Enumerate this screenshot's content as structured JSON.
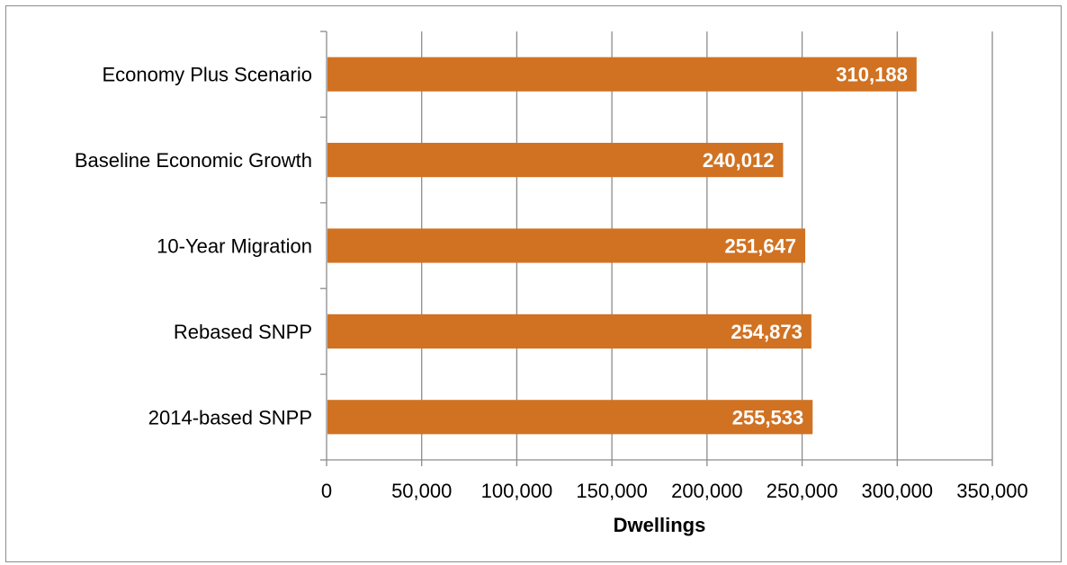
{
  "chart_data": {
    "type": "bar",
    "orientation": "horizontal",
    "categories": [
      "Economy Plus Scenario",
      "Baseline Economic Growth",
      "10-Year Migration",
      "Rebased SNPP",
      "2014-based SNPP"
    ],
    "values": [
      310188,
      240012,
      251647,
      254873,
      255533
    ],
    "data_labels": [
      "310,188",
      "240,012",
      "251,647",
      "254,873",
      "255,533"
    ],
    "title": "",
    "xlabel": "Dwellings",
    "ylabel": "",
    "xlim": [
      0,
      350000
    ],
    "x_ticks": [
      0,
      50000,
      100000,
      150000,
      200000,
      250000,
      300000,
      350000
    ],
    "x_tick_labels": [
      "0",
      "50,000",
      "100,000",
      "150,000",
      "200,000",
      "250,000",
      "300,000",
      "350,000"
    ],
    "grid": "vertical",
    "legend": "none",
    "bar_color": "#d07222",
    "grid_color": "#8c8c8c",
    "label_color": "#ffffff"
  }
}
